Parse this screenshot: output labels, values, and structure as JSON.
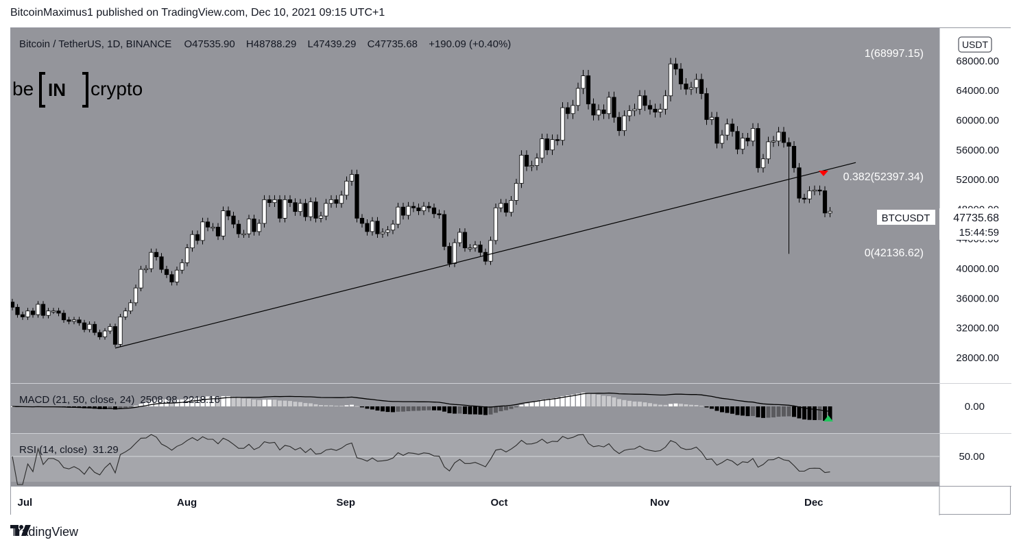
{
  "header": {
    "text": "BitcoinMaximus1 published on TradingView.com, Dec 10, 2021 09:15 UTC+1"
  },
  "footer": {
    "brand": "TradingView"
  },
  "watermark": {
    "left": "be",
    "mid": "IN",
    "right": "crypto"
  },
  "colors": {
    "pane_bg": "#94959b",
    "rsi_bg": "#a5a6ab",
    "bull": "#ffffff",
    "bear": "#000000",
    "red_marker": "#ff0000",
    "green_marker": "#22c55e"
  },
  "chart_data": {
    "type": "candlestick",
    "symbol_line": {
      "name": "Bitcoin / TetherUS, 1D, BINANCE",
      "o_label": "O",
      "o": "47535.90",
      "h_label": "H",
      "h": "48788.29",
      "l_label": "L",
      "l": "47439.29",
      "c_label": "C",
      "c": "47735.68",
      "change": "+190.09 (+0.40%)"
    },
    "currency_label": "USDT",
    "y_ticks": [
      "68000.00",
      "64000.00",
      "60000.00",
      "56000.00",
      "52000.00",
      "48000.00",
      "44000.00",
      "40000.00",
      "36000.00",
      "32000.00",
      "28000.00"
    ],
    "ylim": [
      25500,
      71500
    ],
    "x_ticks": [
      "Jul",
      "Aug",
      "Sep",
      "Oct",
      "Nov",
      "Dec"
    ],
    "price_tag": {
      "symbol": "BTCUSDT",
      "price": "47735.68",
      "countdown": "15:44:59"
    },
    "fib_levels": [
      {
        "label": "1(68997.15)",
        "value": 68997.15
      },
      {
        "label": "0.382(52397.34)",
        "value": 52397.34
      },
      {
        "label": "0(42136.62)",
        "value": 42136.62
      }
    ],
    "trendline": {
      "start": {
        "date": "2021-07-20",
        "price": 29300
      },
      "end": {
        "date": "2021-12-11",
        "price": 54300
      }
    },
    "closes": [
      34800,
      33800,
      33500,
      34300,
      33800,
      35200,
      33700,
      34300,
      34300,
      34000,
      33100,
      32900,
      33100,
      32700,
      31800,
      32500,
      31400,
      30800,
      31600,
      32200,
      29800,
      33500,
      34300,
      35400,
      37400,
      39900,
      40000,
      42200,
      41600,
      39900,
      39200,
      38200,
      39800,
      40800,
      42800,
      44600,
      43800,
      46300,
      45600,
      45600,
      44400,
      47800,
      47100,
      46000,
      44700,
      44700,
      46700,
      45000,
      46100,
      49300,
      48900,
      49300,
      46800,
      49300,
      48900,
      47700,
      48800,
      47000,
      49000,
      46800,
      47100,
      48800,
      49300,
      48800,
      49900,
      51800,
      52700,
      46800,
      46100,
      45000,
      46400,
      44700,
      44900,
      45200,
      46000,
      48300,
      47200,
      48400,
      48200,
      47800,
      48400,
      48200,
      47400,
      47300,
      43000,
      40700,
      43500,
      44900,
      42800,
      42800,
      43200,
      42200,
      41000,
      43800,
      48200,
      48800,
      47600,
      49200,
      51500,
      55300,
      53800,
      53900,
      54900,
      57500,
      56000,
      57400,
      57300,
      61700,
      60900,
      62000,
      64300,
      66000,
      62200,
      60700,
      61400,
      60900,
      63100,
      60400,
      58600,
      60600,
      61300,
      61500,
      63300,
      62000,
      61500,
      61100,
      61500,
      63300,
      67600,
      66900,
      64900,
      64200,
      64400,
      65500,
      63600,
      60100,
      60400,
      56900,
      58000,
      59500,
      58500,
      56100,
      57600,
      57200,
      58900,
      53600,
      54800,
      57100,
      57200,
      58400,
      57000,
      56500,
      53600,
      49500,
      49400,
      50500,
      50600,
      50500,
      47500,
      47735
    ],
    "macd": {
      "label": "MACD (21, 50, close, 24)",
      "macd_value": "2508.98",
      "signal_value": "2218.16",
      "zero_label": "0.00"
    },
    "rsi": {
      "label": "RSI (14, close)",
      "value": "31.29",
      "level_label": "50.00"
    }
  }
}
